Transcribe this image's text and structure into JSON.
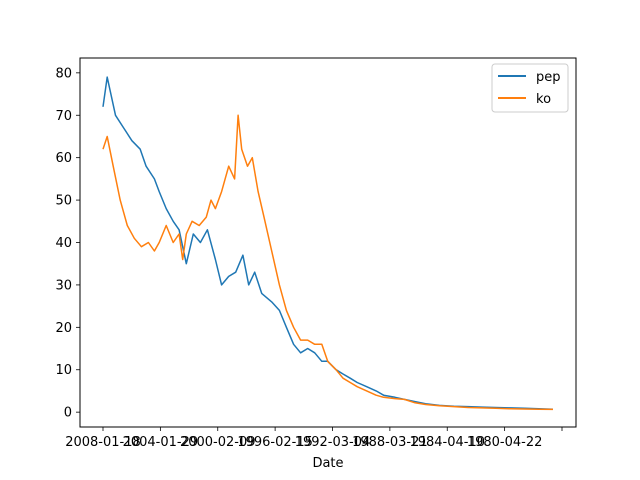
{
  "chart_data": {
    "type": "line",
    "xlabel": "Date",
    "ylabel": "",
    "x_tick_labels": [
      "2008-01-18",
      "2004-01-29",
      "2000-02-09",
      "1996-02-15",
      "1992-03-04",
      "1988-03-21",
      "1984-04-10",
      "1980-04-22",
      ""
    ],
    "y_ticks": [
      0,
      10,
      20,
      30,
      40,
      50,
      60,
      70,
      80
    ],
    "ylim": [
      -3.5,
      83.5
    ],
    "x_direction": "date descending, left to right",
    "grid": false,
    "legend_position": "top-right",
    "series": [
      {
        "name": "pep",
        "color": "#1f77b4",
        "points": [
          [
            "2008-01-18",
            72
          ],
          [
            "2007-10-01",
            79
          ],
          [
            "2007-03-01",
            70
          ],
          [
            "2006-08-01",
            67
          ],
          [
            "2006-01-01",
            64
          ],
          [
            "2005-06-01",
            62
          ],
          [
            "2005-01-01",
            58
          ],
          [
            "2004-06-01",
            55
          ],
          [
            "2004-01-29",
            52
          ],
          [
            "2003-08-01",
            48
          ],
          [
            "2003-02-01",
            45
          ],
          [
            "2002-09-01",
            43
          ],
          [
            "2002-03-01",
            35
          ],
          [
            "2001-09-01",
            42
          ],
          [
            "2001-03-01",
            40
          ],
          [
            "2000-09-01",
            43
          ],
          [
            "2000-02-09",
            36
          ],
          [
            "1999-09-01",
            30
          ],
          [
            "1999-03-01",
            32
          ],
          [
            "1998-09-01",
            33
          ],
          [
            "1998-03-01",
            37
          ],
          [
            "1997-10-01",
            30
          ],
          [
            "1997-05-01",
            33
          ],
          [
            "1996-11-01",
            28
          ],
          [
            "1996-02-15",
            26
          ],
          [
            "1995-08-01",
            24
          ],
          [
            "1995-02-01",
            20
          ],
          [
            "1994-08-01",
            16
          ],
          [
            "1994-02-01",
            14
          ],
          [
            "1993-08-01",
            15
          ],
          [
            "1993-02-01",
            14
          ],
          [
            "1992-08-01",
            12
          ],
          [
            "1992-03-04",
            12
          ],
          [
            "1991-08-01",
            10
          ],
          [
            "1991-02-01",
            9
          ],
          [
            "1990-08-01",
            8
          ],
          [
            "1990-02-01",
            7
          ],
          [
            "1989-06-01",
            6
          ],
          [
            "1988-10-01",
            5
          ],
          [
            "1988-03-21",
            4
          ],
          [
            "1987-06-01",
            3.5
          ],
          [
            "1986-10-01",
            3
          ],
          [
            "1986-01-01",
            2.5
          ],
          [
            "1985-04-01",
            2
          ],
          [
            "1984-04-10",
            1.6
          ],
          [
            "1983-04-01",
            1.4
          ],
          [
            "1982-04-01",
            1.3
          ],
          [
            "1981-04-01",
            1.2
          ],
          [
            "1980-04-22",
            1.1
          ],
          [
            "1979-04-01",
            1.0
          ],
          [
            "1978-04-01",
            0.9
          ],
          [
            "1977-04-01",
            0.8
          ],
          [
            "1976-04-01",
            0.7
          ]
        ]
      },
      {
        "name": "ko",
        "color": "#ff7f0e",
        "points": [
          [
            "2008-01-18",
            62
          ],
          [
            "2007-10-01",
            65
          ],
          [
            "2007-05-01",
            58
          ],
          [
            "2006-11-01",
            50
          ],
          [
            "2006-05-01",
            44
          ],
          [
            "2005-11-01",
            41
          ],
          [
            "2005-05-01",
            39
          ],
          [
            "2004-11-01",
            40
          ],
          [
            "2004-06-01",
            38
          ],
          [
            "2004-01-29",
            40
          ],
          [
            "2003-08-01",
            44
          ],
          [
            "2003-02-01",
            40
          ],
          [
            "2002-09-01",
            42
          ],
          [
            "2002-06-01",
            36
          ],
          [
            "2002-03-01",
            42
          ],
          [
            "2001-10-01",
            45
          ],
          [
            "2001-04-01",
            44
          ],
          [
            "2000-10-01",
            46
          ],
          [
            "2000-06-01",
            50
          ],
          [
            "2000-02-09",
            48
          ],
          [
            "1999-09-01",
            52
          ],
          [
            "1999-03-01",
            58
          ],
          [
            "1998-10-01",
            55
          ],
          [
            "1998-07-01",
            70
          ],
          [
            "1998-04-01",
            62
          ],
          [
            "1997-11-01",
            58
          ],
          [
            "1997-07-01",
            60
          ],
          [
            "1997-02-01",
            52
          ],
          [
            "1996-09-01",
            46
          ],
          [
            "1996-02-15",
            38
          ],
          [
            "1995-08-01",
            30
          ],
          [
            "1995-02-01",
            24
          ],
          [
            "1994-08-01",
            20
          ],
          [
            "1994-02-01",
            17
          ],
          [
            "1993-08-01",
            17
          ],
          [
            "1993-02-01",
            16
          ],
          [
            "1992-08-01",
            16
          ],
          [
            "1992-03-04",
            12
          ],
          [
            "1991-08-01",
            10
          ],
          [
            "1991-02-01",
            8
          ],
          [
            "1990-08-01",
            7
          ],
          [
            "1990-02-01",
            6
          ],
          [
            "1989-06-01",
            5
          ],
          [
            "1988-10-01",
            4
          ],
          [
            "1988-03-21",
            3.5
          ],
          [
            "1987-06-01",
            3.2
          ],
          [
            "1986-10-01",
            3
          ],
          [
            "1986-01-01",
            2.2
          ],
          [
            "1985-04-01",
            1.8
          ],
          [
            "1984-04-10",
            1.5
          ],
          [
            "1983-04-01",
            1.3
          ],
          [
            "1982-04-01",
            1.1
          ],
          [
            "1981-04-01",
            1.0
          ],
          [
            "1980-04-22",
            0.9
          ],
          [
            "1979-04-01",
            0.8
          ],
          [
            "1978-04-01",
            0.75
          ],
          [
            "1977-04-01",
            0.7
          ],
          [
            "1976-04-01",
            0.65
          ]
        ]
      }
    ]
  }
}
